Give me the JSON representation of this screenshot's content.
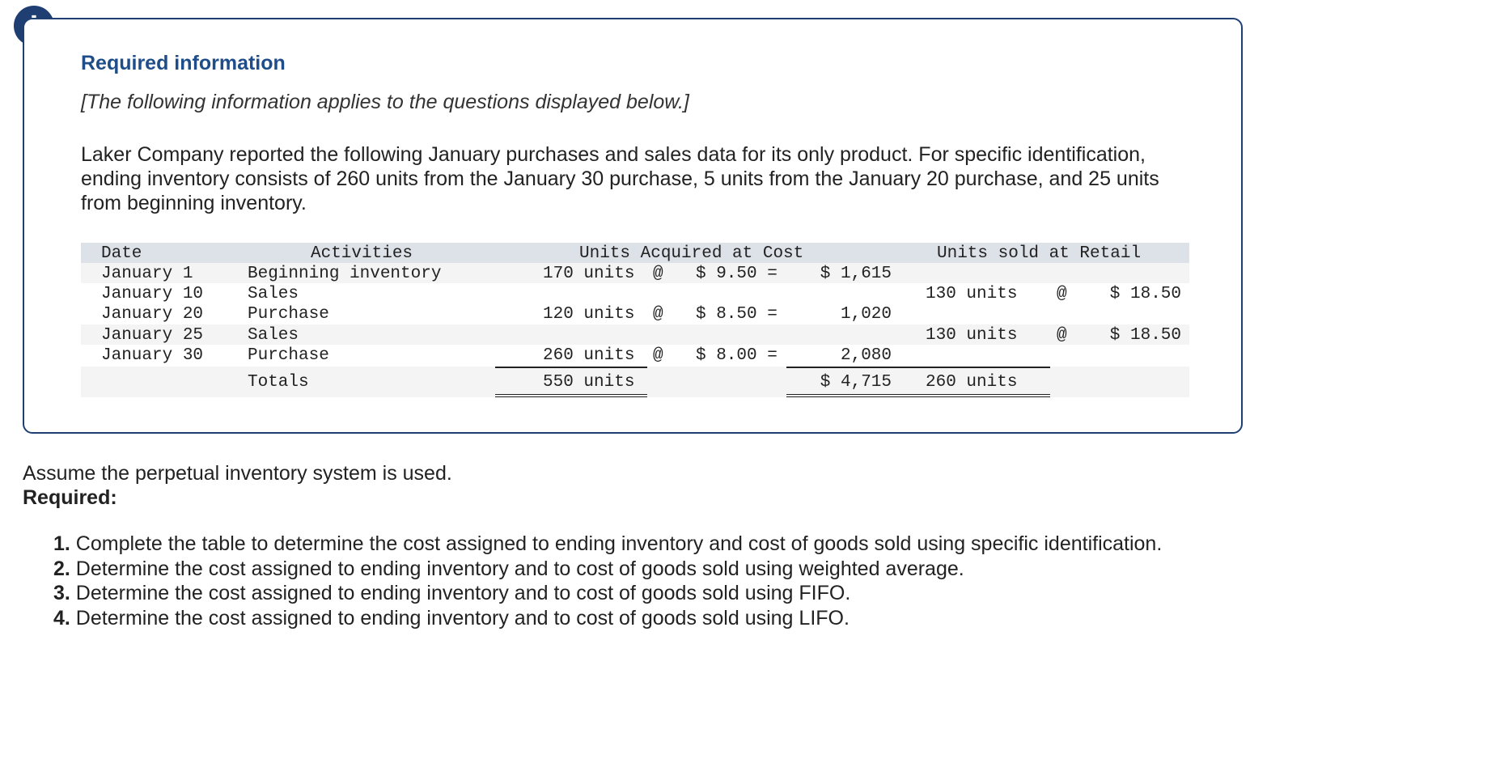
{
  "alert": {
    "symbol": "!"
  },
  "info": {
    "title": "Required information",
    "note": "[The following information applies to the questions displayed below.]",
    "intro": "Laker Company reported the following January purchases and sales data for its only product. For specific identification, ending inventory consists of 260 units from the January 30 purchase, 5 units from the January 20 purchase, and 25 units from beginning inventory."
  },
  "table": {
    "headers": {
      "date": "Date",
      "activities": "Activities",
      "acquired": "Units Acquired at Cost",
      "sold": "Units sold at Retail"
    },
    "rows": [
      {
        "date": "January 1",
        "activity": "Beginning inventory",
        "acq_units": "170 units",
        "acq_at": "@",
        "acq_price": "$ 9.50 =",
        "acq_total": "$ 1,615",
        "sold_units": "",
        "sold_at": "",
        "sold_price": ""
      },
      {
        "date": "January 10",
        "activity": "Sales",
        "acq_units": "",
        "acq_at": "",
        "acq_price": "",
        "acq_total": "",
        "sold_units": "130 units",
        "sold_at": "@",
        "sold_price": "$ 18.50"
      },
      {
        "date": "January 20",
        "activity": "Purchase",
        "acq_units": "120 units",
        "acq_at": "@",
        "acq_price": "$ 8.50 =",
        "acq_total": "1,020",
        "sold_units": "",
        "sold_at": "",
        "sold_price": ""
      },
      {
        "date": "January 25",
        "activity": "Sales",
        "acq_units": "",
        "acq_at": "",
        "acq_price": "",
        "acq_total": "",
        "sold_units": "130 units",
        "sold_at": "@",
        "sold_price": "$ 18.50"
      },
      {
        "date": "January 30",
        "activity": "Purchase",
        "acq_units": "260 units",
        "acq_at": "@",
        "acq_price": "$ 8.00 =",
        "acq_total": "2,080",
        "sold_units": "",
        "sold_at": "",
        "sold_price": ""
      }
    ],
    "totals": {
      "label": "Totals",
      "acq_units": "550 units",
      "acq_total": "$ 4,715",
      "sold_units": "260 units"
    }
  },
  "footer": {
    "assumption": "Assume the perpetual inventory system is used.",
    "required_label": "Required:",
    "tasks": [
      {
        "num": "1.",
        "text": " Complete the table to determine the cost assigned to ending inventory and cost of goods sold using specific identification."
      },
      {
        "num": "2.",
        "text": " Determine the cost assigned to ending inventory and to cost of goods sold using weighted average."
      },
      {
        "num": "3.",
        "text": " Determine the cost assigned to ending inventory and to cost of goods sold using FIFO."
      },
      {
        "num": "4.",
        "text": " Determine the cost assigned to ending inventory and to cost of goods sold using LIFO."
      }
    ]
  },
  "colors": {
    "accent": "#1f3f73",
    "title": "#1f4d8a",
    "header_band": "#dde1e8",
    "zebra": "#f4f4f4"
  }
}
